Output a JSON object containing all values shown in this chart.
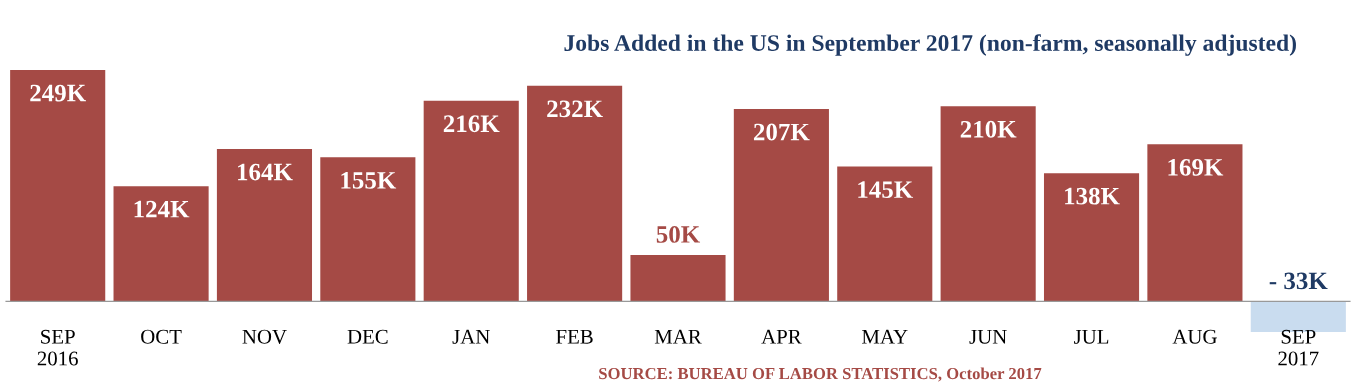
{
  "chart_data": {
    "type": "bar",
    "title": "Jobs Added in the US in September 2017 (non-farm, seasonally adjusted)",
    "categories": [
      "SEP\n2016",
      "OCT",
      "NOV",
      "DEC",
      "JAN",
      "FEB",
      "MAR",
      "APR",
      "MAY",
      "JUN",
      "JUL",
      "AUG",
      "SEP\n2017"
    ],
    "values": [
      249,
      124,
      164,
      155,
      216,
      232,
      50,
      207,
      145,
      210,
      138,
      169,
      -33
    ],
    "colors": [
      "#a54a45",
      "#a54a45",
      "#a54a45",
      "#a54a45",
      "#a54a45",
      "#a54a45",
      "#a54a45",
      "#a54a45",
      "#a54a45",
      "#a54a45",
      "#a54a45",
      "#a54a45",
      "#c9dcef"
    ],
    "value_labels": [
      "249K",
      "124K",
      "164K",
      "155K",
      "216K",
      "232K",
      "50K",
      "207K",
      "145K",
      "210K",
      "138K",
      "169K",
      "- 33K"
    ],
    "annotations": [
      "SOURCE: BUREAU OF LABOR STATISTICS, October 2017"
    ],
    "grid": false,
    "legend": false
  }
}
